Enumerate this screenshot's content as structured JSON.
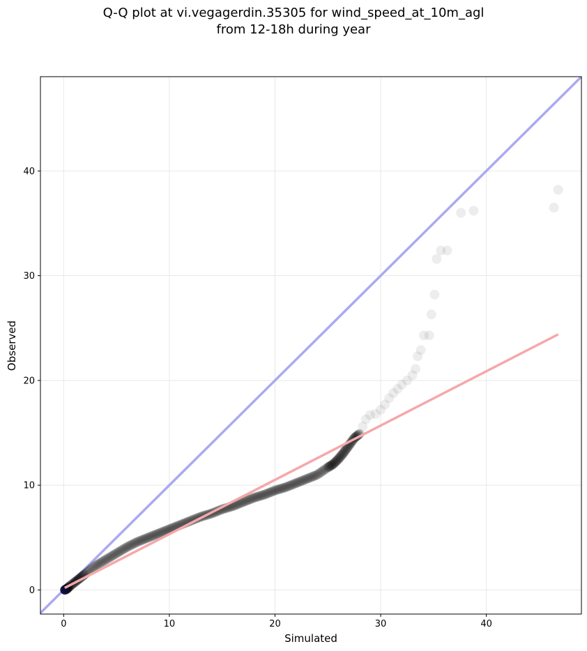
{
  "chart_data": {
    "type": "scatter",
    "title": "Q-Q plot at vi.vegagerdin.35305 for wind_speed_at_10m_agl",
    "subtitle": "from 12-18h during year",
    "xlabel": "Simulated",
    "ylabel": "Observed",
    "xlim": [
      -2.2,
      49
    ],
    "ylim": [
      -2.3,
      49
    ],
    "xticks": [
      0,
      10,
      20,
      30,
      40
    ],
    "yticks": [
      0,
      10,
      20,
      30,
      40
    ],
    "grid": true,
    "identity_line": {
      "color": "#aaaaf0"
    },
    "fit_line": {
      "color": "#f5a8aa",
      "x": [
        0.1,
        46.8
      ],
      "y": [
        0.2,
        24.4
      ]
    },
    "points_color": "#000000",
    "main_curve": {
      "x": [
        0.1,
        0.3,
        0.5,
        1,
        1.5,
        2,
        3,
        4,
        5,
        6,
        7,
        8,
        9,
        10,
        11,
        12,
        13,
        14,
        15,
        16,
        17,
        18,
        19,
        20,
        21,
        22,
        23,
        24,
        25,
        25.5,
        26,
        26.5,
        27,
        27.5,
        28
      ],
      "y": [
        0.0,
        0.1,
        0.3,
        0.7,
        1.1,
        1.5,
        2.3,
        2.9,
        3.5,
        4.1,
        4.6,
        5.0,
        5.4,
        5.8,
        6.2,
        6.6,
        7.0,
        7.3,
        7.7,
        8.0,
        8.4,
        8.8,
        9.1,
        9.5,
        9.8,
        10.2,
        10.6,
        11.0,
        11.7,
        12.0,
        12.5,
        13.1,
        13.8,
        14.5,
        14.9
      ]
    },
    "tail_points": {
      "x": [
        28.3,
        28.6,
        29.0,
        29.5,
        30.0,
        30.4,
        30.8,
        31.2,
        31.6,
        32.0,
        32.5,
        33.0,
        33.3,
        33.5,
        33.8,
        34.1,
        34.6,
        34.8,
        35.1,
        35.3,
        35.7,
        36.3,
        37.6,
        38.8,
        46.4,
        46.8
      ],
      "y": [
        15.6,
        16.3,
        16.7,
        16.8,
        17.2,
        17.7,
        18.3,
        18.8,
        19.2,
        19.6,
        20.0,
        20.5,
        21.1,
        22.3,
        22.9,
        24.3,
        24.3,
        26.3,
        28.2,
        31.6,
        32.4,
        32.4,
        36.0,
        36.2,
        36.5,
        38.2
      ]
    }
  }
}
